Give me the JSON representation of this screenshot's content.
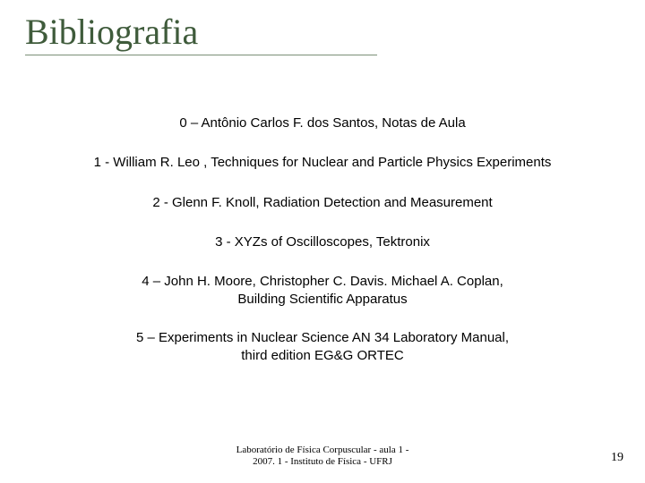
{
  "title": "Bibliografia",
  "entries": [
    "0 – Antônio Carlos F. dos Santos, Notas de Aula",
    "1 - William R. Leo , Techniques for Nuclear and Particle Physics Experiments",
    "2 - Glenn F. Knoll, Radiation Detection and Measurement",
    "3 - XYZs of Oscilloscopes, Tektronix",
    "4 – John H. Moore, Christopher C. Davis. Michael A. Coplan,\nBuilding Scientific Apparatus",
    "5 – Experiments in Nuclear Science AN 34 Laboratory Manual,\nthird edition EG&G ORTEC"
  ],
  "footer": {
    "center": "Laboratório de Física Corpuscular  - aula 1 -\n2007. 1 -  Instituto de Física - UFRJ",
    "pageNumber": "19"
  },
  "colors": {
    "titleColor": "#3f5b3b",
    "underlineColor": "#7a8f76"
  }
}
